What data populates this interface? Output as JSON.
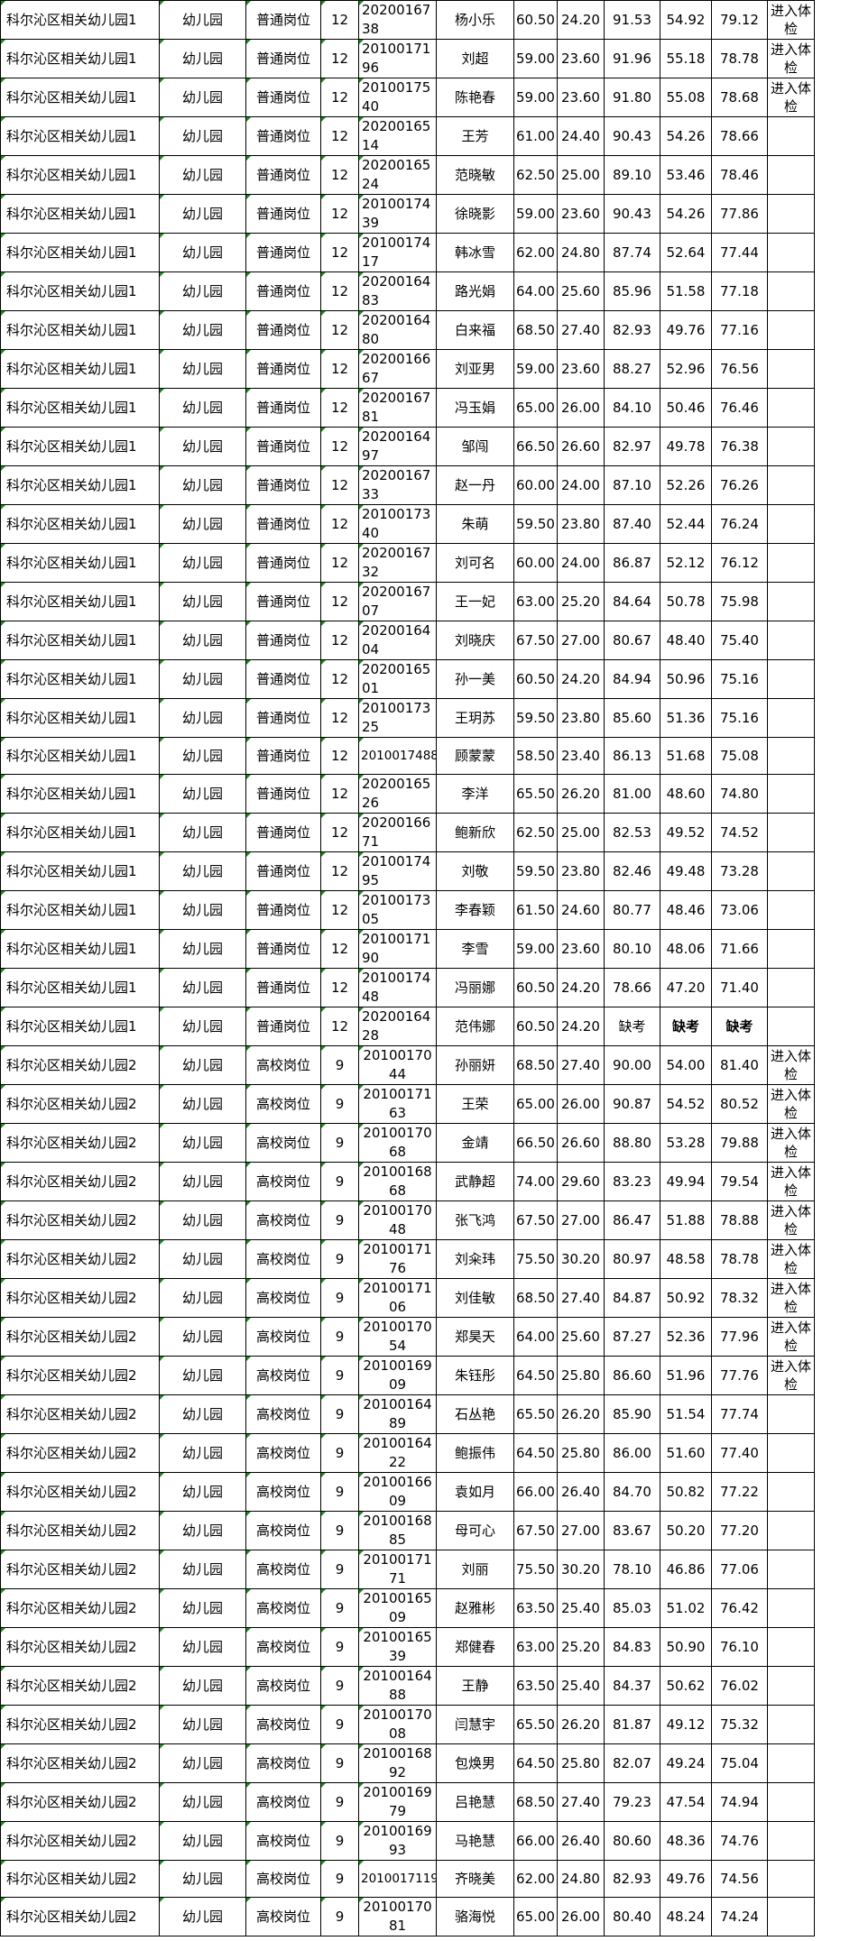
{
  "rows": [
    [
      "科尔沁区相关幼儿园1",
      "幼儿园",
      "普通岗位",
      "12",
      "2020016738",
      "杨小乐",
      "60.50",
      "24.20",
      "91.53",
      "54.92",
      "79.12",
      "进入体检"
    ],
    [
      "科尔沁区相关幼儿园1",
      "幼儿园",
      "普通岗位",
      "12",
      "2010017196",
      "刘超",
      "59.00",
      "23.60",
      "91.96",
      "55.18",
      "78.78",
      "进入体检"
    ],
    [
      "科尔沁区相关幼儿园1",
      "幼儿园",
      "普通岗位",
      "12",
      "2010017540",
      "陈艳春",
      "59.00",
      "23.60",
      "91.80",
      "55.08",
      "78.68",
      "进入体检"
    ],
    [
      "科尔沁区相关幼儿园1",
      "幼儿园",
      "普通岗位",
      "12",
      "2020016514",
      "王芳",
      "61.00",
      "24.40",
      "90.43",
      "54.26",
      "78.66",
      ""
    ],
    [
      "科尔沁区相关幼儿园1",
      "幼儿园",
      "普通岗位",
      "12",
      "2020016524",
      "范晓敏",
      "62.50",
      "25.00",
      "89.10",
      "53.46",
      "78.46",
      ""
    ],
    [
      "科尔沁区相关幼儿园1",
      "幼儿园",
      "普通岗位",
      "12",
      "2010017439",
      "徐晓影",
      "59.00",
      "23.60",
      "90.43",
      "54.26",
      "77.86",
      ""
    ],
    [
      "科尔沁区相关幼儿园1",
      "幼儿园",
      "普通岗位",
      "12",
      "2010017417",
      "韩冰雪",
      "62.00",
      "24.80",
      "87.74",
      "52.64",
      "77.44",
      ""
    ],
    [
      "科尔沁区相关幼儿园1",
      "幼儿园",
      "普通岗位",
      "12",
      "2020016483",
      "路光娟",
      "64.00",
      "25.60",
      "85.96",
      "51.58",
      "77.18",
      ""
    ],
    [
      "科尔沁区相关幼儿园1",
      "幼儿园",
      "普通岗位",
      "12",
      "2020016480",
      "白来福",
      "68.50",
      "27.40",
      "82.93",
      "49.76",
      "77.16",
      ""
    ],
    [
      "科尔沁区相关幼儿园1",
      "幼儿园",
      "普通岗位",
      "12",
      "2020016667",
      "刘亚男",
      "59.00",
      "23.60",
      "88.27",
      "52.96",
      "76.56",
      ""
    ],
    [
      "科尔沁区相关幼儿园1",
      "幼儿园",
      "普通岗位",
      "12",
      "2020016781",
      "冯玉娟",
      "65.00",
      "26.00",
      "84.10",
      "50.46",
      "76.46",
      ""
    ],
    [
      "科尔沁区相关幼儿园1",
      "幼儿园",
      "普通岗位",
      "12",
      "2020016497",
      "邹闯",
      "66.50",
      "26.60",
      "82.97",
      "49.78",
      "76.38",
      ""
    ],
    [
      "科尔沁区相关幼儿园1",
      "幼儿园",
      "普通岗位",
      "12",
      "2020016733",
      "赵一丹",
      "60.00",
      "24.00",
      "87.10",
      "52.26",
      "76.26",
      ""
    ],
    [
      "科尔沁区相关幼儿园1",
      "幼儿园",
      "普通岗位",
      "12",
      "2010017340",
      "朱萌",
      "59.50",
      "23.80",
      "87.40",
      "52.44",
      "76.24",
      ""
    ],
    [
      "科尔沁区相关幼儿园1",
      "幼儿园",
      "普通岗位",
      "12",
      "2020016732",
      "刘可名",
      "60.00",
      "24.00",
      "86.87",
      "52.12",
      "76.12",
      ""
    ],
    [
      "科尔沁区相关幼儿园1",
      "幼儿园",
      "普通岗位",
      "12",
      "2020016707",
      "王一妃",
      "63.00",
      "25.20",
      "84.64",
      "50.78",
      "75.98",
      ""
    ],
    [
      "科尔沁区相关幼儿园1",
      "幼儿园",
      "普通岗位",
      "12",
      "2020016404",
      "刘晓庆",
      "67.50",
      "27.00",
      "80.67",
      "48.40",
      "75.40",
      ""
    ],
    [
      "科尔沁区相关幼儿园1",
      "幼儿园",
      "普通岗位",
      "12",
      "2020016501",
      "孙一美",
      "60.50",
      "24.20",
      "84.94",
      "50.96",
      "75.16",
      ""
    ],
    [
      "科尔沁区相关幼儿园1",
      "幼儿园",
      "普通岗位",
      "12",
      "2010017325",
      "王玥苏",
      "59.50",
      "23.80",
      "85.60",
      "51.36",
      "75.16",
      ""
    ],
    [
      "科尔沁区相关幼儿园1",
      "幼儿园",
      "普通岗位",
      "12",
      "2010017488",
      "顾蒙蒙",
      "58.50",
      "23.40",
      "86.13",
      "51.68",
      "75.08",
      ""
    ],
    [
      "科尔沁区相关幼儿园1",
      "幼儿园",
      "普通岗位",
      "12",
      "2020016526",
      "李洋",
      "65.50",
      "26.20",
      "81.00",
      "48.60",
      "74.80",
      ""
    ],
    [
      "科尔沁区相关幼儿园1",
      "幼儿园",
      "普通岗位",
      "12",
      "2020016671",
      "鲍新欣",
      "62.50",
      "25.00",
      "82.53",
      "49.52",
      "74.52",
      ""
    ],
    [
      "科尔沁区相关幼儿园1",
      "幼儿园",
      "普通岗位",
      "12",
      "2010017495",
      "刘敬",
      "59.50",
      "23.80",
      "82.46",
      "49.48",
      "73.28",
      ""
    ],
    [
      "科尔沁区相关幼儿园1",
      "幼儿园",
      "普通岗位",
      "12",
      "2010017305",
      "李春颖",
      "61.50",
      "24.60",
      "80.77",
      "48.46",
      "73.06",
      ""
    ],
    [
      "科尔沁区相关幼儿园1",
      "幼儿园",
      "普通岗位",
      "12",
      "2010017190",
      "李雪",
      "59.00",
      "23.60",
      "80.10",
      "48.06",
      "71.66",
      ""
    ],
    [
      "科尔沁区相关幼儿园1",
      "幼儿园",
      "普通岗位",
      "12",
      "2010017448",
      "冯丽娜",
      "60.50",
      "24.20",
      "78.66",
      "47.20",
      "71.40",
      ""
    ],
    [
      "科尔沁区相关幼儿园1",
      "幼儿园",
      "普通岗位",
      "12",
      "2020016428",
      "范伟娜",
      "60.50",
      "24.20",
      "缺考",
      "缺考",
      "缺考",
      ""
    ],
    [
      "科尔沁区相关幼儿园2",
      "幼儿园",
      "高校岗位",
      "9",
      "2010017044",
      "孙丽妍",
      "68.50",
      "27.40",
      "90.00",
      "54.00",
      "81.40",
      "进入体检"
    ],
    [
      "科尔沁区相关幼儿园2",
      "幼儿园",
      "高校岗位",
      "9",
      "2010017163",
      "王荣",
      "65.00",
      "26.00",
      "90.87",
      "54.52",
      "80.52",
      "进入体检"
    ],
    [
      "科尔沁区相关幼儿园2",
      "幼儿园",
      "高校岗位",
      "9",
      "2010017068",
      "金靖",
      "66.50",
      "26.60",
      "88.80",
      "53.28",
      "79.88",
      "进入体检"
    ],
    [
      "科尔沁区相关幼儿园2",
      "幼儿园",
      "高校岗位",
      "9",
      "2010016868",
      "武静超",
      "74.00",
      "29.60",
      "83.23",
      "49.94",
      "79.54",
      "进入体检"
    ],
    [
      "科尔沁区相关幼儿园2",
      "幼儿园",
      "高校岗位",
      "9",
      "2010017048",
      "张飞鸿",
      "67.50",
      "27.00",
      "86.47",
      "51.88",
      "78.88",
      "进入体检"
    ],
    [
      "科尔沁区相关幼儿园2",
      "幼儿园",
      "高校岗位",
      "9",
      "2010017176",
      "刘籴玮",
      "75.50",
      "30.20",
      "80.97",
      "48.58",
      "78.78",
      "进入体检"
    ],
    [
      "科尔沁区相关幼儿园2",
      "幼儿园",
      "高校岗位",
      "9",
      "2010017106",
      "刘佳敏",
      "68.50",
      "27.40",
      "84.87",
      "50.92",
      "78.32",
      "进入体检"
    ],
    [
      "科尔沁区相关幼儿园2",
      "幼儿园",
      "高校岗位",
      "9",
      "2010017054",
      "郑昊天",
      "64.00",
      "25.60",
      "87.27",
      "52.36",
      "77.96",
      "进入体检"
    ],
    [
      "科尔沁区相关幼儿园2",
      "幼儿园",
      "高校岗位",
      "9",
      "2010016909",
      "朱钰彤",
      "64.50",
      "25.80",
      "86.60",
      "51.96",
      "77.76",
      "进入体检"
    ],
    [
      "科尔沁区相关幼儿园2",
      "幼儿园",
      "高校岗位",
      "9",
      "2010016489",
      "石丛艳",
      "65.50",
      "26.20",
      "85.90",
      "51.54",
      "77.74",
      ""
    ],
    [
      "科尔沁区相关幼儿园2",
      "幼儿园",
      "高校岗位",
      "9",
      "2010016422",
      "鲍振伟",
      "64.50",
      "25.80",
      "86.00",
      "51.60",
      "77.40",
      ""
    ],
    [
      "科尔沁区相关幼儿园2",
      "幼儿园",
      "高校岗位",
      "9",
      "2010016609",
      "袁如月",
      "66.00",
      "26.40",
      "84.70",
      "50.82",
      "77.22",
      ""
    ],
    [
      "科尔沁区相关幼儿园2",
      "幼儿园",
      "高校岗位",
      "9",
      "2010016885",
      "母可心",
      "67.50",
      "27.00",
      "83.67",
      "50.20",
      "77.20",
      ""
    ],
    [
      "科尔沁区相关幼儿园2",
      "幼儿园",
      "高校岗位",
      "9",
      "2010017171",
      "刘丽",
      "75.50",
      "30.20",
      "78.10",
      "46.86",
      "77.06",
      ""
    ],
    [
      "科尔沁区相关幼儿园2",
      "幼儿园",
      "高校岗位",
      "9",
      "2010016509",
      "赵雅彬",
      "63.50",
      "25.40",
      "85.03",
      "51.02",
      "76.42",
      ""
    ],
    [
      "科尔沁区相关幼儿园2",
      "幼儿园",
      "高校岗位",
      "9",
      "2010016539",
      "郑健春",
      "63.00",
      "25.20",
      "84.83",
      "50.90",
      "76.10",
      ""
    ],
    [
      "科尔沁区相关幼儿园2",
      "幼儿园",
      "高校岗位",
      "9",
      "2010016488",
      "王静",
      "63.50",
      "25.40",
      "84.37",
      "50.62",
      "76.02",
      ""
    ],
    [
      "科尔沁区相关幼儿园2",
      "幼儿园",
      "高校岗位",
      "9",
      "2010017008",
      "闫慧宇",
      "65.50",
      "26.20",
      "81.87",
      "49.12",
      "75.32",
      ""
    ],
    [
      "科尔沁区相关幼儿园2",
      "幼儿园",
      "高校岗位",
      "9",
      "2010016892",
      "包焕男",
      "64.50",
      "25.80",
      "82.07",
      "49.24",
      "75.04",
      ""
    ],
    [
      "科尔沁区相关幼儿园2",
      "幼儿园",
      "高校岗位",
      "9",
      "2010016979",
      "吕艳慧",
      "68.50",
      "27.40",
      "79.23",
      "47.54",
      "74.94",
      ""
    ],
    [
      "科尔沁区相关幼儿园2",
      "幼儿园",
      "高校岗位",
      "9",
      "2010016993",
      "马艳慧",
      "66.00",
      "26.40",
      "80.60",
      "48.36",
      "74.76",
      ""
    ],
    [
      "科尔沁区相关幼儿园2",
      "幼儿园",
      "高校岗位",
      "9",
      "2010017119",
      "齐晓美",
      "62.00",
      "24.80",
      "82.93",
      "49.76",
      "74.56",
      ""
    ],
    [
      "科尔沁区相关幼儿园2",
      "幼儿园",
      "高校岗位",
      "9",
      "2010017081",
      "骆海悦",
      "65.00",
      "26.00",
      "80.40",
      "48.24",
      "74.24",
      ""
    ]
  ]
}
